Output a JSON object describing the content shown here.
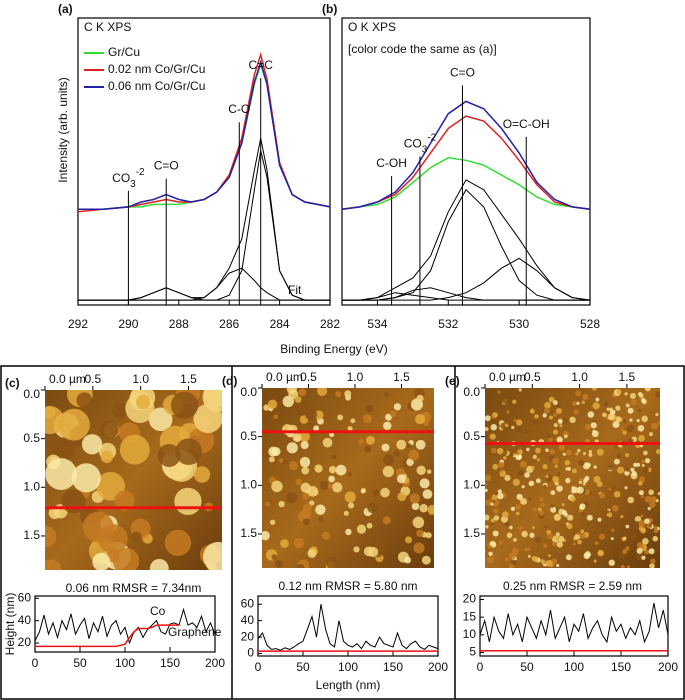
{
  "chart_data": [
    {
      "type": "line",
      "label": "(a)",
      "title": "C K XPS",
      "x_label": "Binding Energy (eV)",
      "y_label": "Intensity (arb. units)",
      "x": [
        292,
        291,
        290,
        289.5,
        289,
        288.5,
        288,
        287.5,
        287,
        286.5,
        286,
        285.5,
        285,
        284.75,
        284.5,
        284,
        283.5,
        283,
        282.5,
        282
      ],
      "xlim": [
        292,
        282
      ],
      "xticks": [
        292,
        290,
        288,
        286,
        284,
        282
      ],
      "ylim": [
        -2,
        115
      ],
      "legend": "upper left",
      "series": [
        {
          "name": "Gr/Cu",
          "color": "#33dd33",
          "values": [
            37,
            37,
            38,
            38,
            39,
            39,
            39,
            40,
            41,
            44,
            50,
            64,
            88,
            96,
            88,
            55,
            43,
            40,
            39,
            38
          ]
        },
        {
          "name": "0.02 nm Co/Gr/Cu",
          "color": "#dd2222",
          "values": [
            36,
            37,
            38,
            39,
            40,
            41,
            40,
            40,
            41,
            44,
            51,
            66,
            92,
            100,
            90,
            56,
            43,
            40,
            39,
            38
          ]
        },
        {
          "name": "0.06 nm Co/Gr/Cu",
          "color": "#2222aa",
          "values": [
            37,
            37,
            38,
            40,
            41,
            43,
            41,
            40,
            41,
            44,
            50,
            64,
            89,
            97,
            88,
            55,
            43,
            40,
            39,
            38
          ]
        },
        {
          "color": "#000000",
          "values": [
            0,
            0,
            0,
            1,
            3,
            5,
            3,
            1,
            0,
            0,
            0,
            0,
            0,
            0,
            0,
            0,
            0,
            0,
            0,
            0
          ]
        },
        {
          "color": "#000000",
          "values": [
            0,
            0,
            0,
            0,
            0,
            0,
            0,
            0,
            1,
            5,
            11,
            13,
            8,
            5,
            3,
            0,
            0,
            0,
            0,
            0
          ]
        },
        {
          "color": "#000000",
          "values": [
            0,
            0,
            0,
            0,
            0,
            0,
            0,
            0,
            0,
            0,
            2,
            12,
            45,
            61,
            50,
            12,
            2,
            0,
            0,
            0
          ]
        },
        {
          "color": "#000000",
          "values": [
            0,
            0,
            0,
            1,
            3,
            5,
            3,
            1,
            1,
            5,
            13,
            25,
            53,
            66,
            53,
            12,
            2,
            0,
            0,
            0
          ]
        }
      ],
      "annotations": [
        {
          "text": "CO",
          "sub": "3",
          "sup": "-2",
          "x": 290
        },
        {
          "text": "C=O",
          "x": 288.5
        },
        {
          "text": "C-O",
          "x": 285.6
        },
        {
          "text": "C=C",
          "x": 284.75
        }
      ],
      "fit_label": "Fit"
    },
    {
      "type": "line",
      "label": "(b)",
      "title": "O K XPS",
      "subtitle": "[color code the same as (a)]",
      "x": [
        535,
        534.5,
        534,
        533.5,
        533,
        532.5,
        532,
        531.5,
        531,
        530.5,
        530,
        529.5,
        529,
        528.5,
        528
      ],
      "xlim": [
        535,
        528
      ],
      "xticks": [
        534,
        532,
        530,
        528
      ],
      "ylim": [
        -2,
        115
      ],
      "series": [
        {
          "color": "#33dd33",
          "values": [
            37,
            38,
            39,
            42,
            48,
            54,
            58,
            57,
            55,
            51,
            47,
            42,
            39,
            38,
            37
          ]
        },
        {
          "color": "#dd2222",
          "values": [
            37,
            38,
            40,
            43,
            50,
            60,
            70,
            75,
            73,
            66,
            57,
            47,
            40,
            38,
            37
          ]
        },
        {
          "color": "#2222aa",
          "values": [
            37,
            38,
            40,
            44,
            52,
            64,
            76,
            81,
            78,
            70,
            60,
            48,
            41,
            38,
            37
          ]
        },
        {
          "color": "#000000",
          "values": [
            0,
            0,
            0,
            1,
            3,
            12,
            32,
            45,
            38,
            22,
            8,
            2,
            0,
            0,
            0
          ]
        },
        {
          "color": "#000000",
          "values": [
            0,
            0,
            0,
            0,
            0,
            0,
            1,
            3,
            7,
            13,
            17,
            12,
            5,
            1,
            0
          ]
        },
        {
          "color": "#000000",
          "values": [
            0,
            0,
            1,
            3,
            2,
            1,
            0,
            0,
            0,
            0,
            0,
            0,
            0,
            0,
            0
          ]
        },
        {
          "color": "#000000",
          "values": [
            0,
            0,
            0,
            1,
            4,
            5,
            3,
            1,
            0,
            0,
            0,
            0,
            0,
            0,
            0
          ]
        },
        {
          "color": "#000000",
          "values": [
            0,
            0,
            1,
            5,
            9,
            18,
            36,
            49,
            45,
            35,
            25,
            14,
            5,
            1,
            0
          ]
        }
      ],
      "annotations": [
        {
          "text": "C-OH",
          "x": 533.6
        },
        {
          "text": "CO",
          "sub": "3",
          "sup": "-2",
          "x": 532.8
        },
        {
          "text": "C=O",
          "x": 531.6
        },
        {
          "text": "O=C-OH",
          "x": 529.8
        }
      ]
    },
    {
      "type": "image",
      "label": "(c)",
      "caption": "0.06 nm RMSR = 7.34nm",
      "xlim": [
        0,
        1.85
      ],
      "ylim": [
        0,
        1.85
      ],
      "xticks": [
        {
          "value": 0,
          "label": "0.0 µm"
        },
        {
          "value": 0.5,
          "label": "0.5"
        },
        {
          "value": 1,
          "label": "1.0"
        },
        {
          "value": 1.5,
          "label": "1.5"
        }
      ],
      "yticks": [
        {
          "value": 0,
          "label": "0.0"
        },
        {
          "value": 0.5,
          "label": "0.5"
        },
        {
          "value": 1,
          "label": "1.0"
        },
        {
          "value": 1.5,
          "label": "1.5"
        }
      ],
      "line_y": 1.21,
      "line_color": "#ee1111"
    },
    {
      "type": "line",
      "y_label": "Height (nm)",
      "x": [
        0,
        5,
        10,
        15,
        20,
        25,
        30,
        35,
        40,
        45,
        50,
        55,
        60,
        65,
        70,
        75,
        80,
        85,
        90,
        95,
        100,
        105,
        110,
        115,
        120,
        125,
        130,
        135,
        140,
        145,
        150,
        155,
        160,
        165,
        170,
        175,
        180,
        185,
        190,
        195,
        200
      ],
      "xlim": [
        0,
        200
      ],
      "xticks": [
        0,
        50,
        100,
        150,
        200
      ],
      "ylim": [
        12,
        62
      ],
      "yticks": [
        20,
        40,
        60
      ],
      "series": [
        {
          "color": "#000000",
          "values": [
            22,
            30,
            45,
            28,
            38,
            25,
            40,
            32,
            46,
            28,
            36,
            42,
            24,
            38,
            30,
            44,
            26,
            36,
            40,
            28,
            34,
            20,
            30,
            34,
            25,
            32,
            36,
            40,
            30,
            28,
            37,
            38,
            36,
            50,
            36,
            38,
            34,
            44,
            30,
            38,
            28
          ]
        },
        {
          "color": "#ee1111",
          "values": [
            17,
            17,
            17,
            17,
            17,
            17,
            17,
            17,
            17,
            17,
            17,
            17,
            17,
            17,
            17,
            17,
            17,
            17,
            17,
            18,
            19,
            25,
            30,
            33,
            33,
            33,
            34,
            36,
            36,
            36,
            36,
            36,
            36,
            null,
            null,
            null,
            null,
            null,
            null,
            null,
            null
          ]
        }
      ],
      "annotations": [
        "Co",
        "Graphene"
      ]
    },
    {
      "type": "image",
      "label": "(d)",
      "caption": "0.12 nm RMSR = 5.80 nm",
      "xlim": [
        0,
        1.85
      ],
      "ylim": [
        0,
        1.85
      ],
      "xticks": [
        {
          "value": 0,
          "label": "0.0 µm"
        },
        {
          "value": 0.5,
          "label": "0.5"
        },
        {
          "value": 1,
          "label": "1.0"
        },
        {
          "value": 1.5,
          "label": "1.5"
        }
      ],
      "yticks": [
        {
          "value": 0,
          "label": "0.0"
        },
        {
          "value": 0.5,
          "label": "0.5"
        },
        {
          "value": 1,
          "label": "1.0"
        },
        {
          "value": 1.5,
          "label": "1.5"
        }
      ],
      "line_y": 0.45,
      "line_color": "#ee1111"
    },
    {
      "type": "line",
      "x_label": "Length (nm)",
      "x": [
        0,
        5,
        10,
        15,
        20,
        25,
        30,
        35,
        40,
        45,
        50,
        55,
        60,
        65,
        70,
        75,
        80,
        85,
        90,
        95,
        100,
        105,
        110,
        115,
        120,
        125,
        130,
        135,
        140,
        145,
        150,
        155,
        160,
        165,
        170,
        175,
        180,
        185,
        190,
        195,
        200
      ],
      "xlim": [
        0,
        200
      ],
      "xticks": [
        0,
        50,
        100,
        150,
        200
      ],
      "ylim": [
        -3,
        70
      ],
      "yticks": [
        0,
        20,
        40,
        60
      ],
      "series": [
        {
          "color": "#000000",
          "values": [
            18,
            25,
            10,
            5,
            6,
            4,
            7,
            5,
            8,
            12,
            15,
            30,
            45,
            20,
            60,
            30,
            12,
            8,
            40,
            15,
            10,
            8,
            12,
            6,
            15,
            10,
            8,
            20,
            12,
            10,
            8,
            25,
            10,
            6,
            12,
            15,
            8,
            5,
            10,
            8,
            6
          ]
        },
        {
          "color": "#ee1111",
          "values": [
            3,
            3,
            3,
            3,
            3,
            3,
            3,
            3,
            3,
            3,
            3,
            3,
            3,
            3,
            3,
            3,
            3,
            3,
            3,
            3,
            3,
            3,
            3,
            3,
            3,
            3,
            3,
            3,
            3,
            3,
            3,
            3,
            3,
            3,
            3,
            3,
            3,
            3,
            3,
            3,
            3
          ]
        }
      ]
    },
    {
      "type": "image",
      "label": "(e)",
      "caption": "0.25 nm RMSR = 2.59 nm",
      "xlim": [
        0,
        1.85
      ],
      "ylim": [
        0,
        1.85
      ],
      "xticks": [
        {
          "value": 0,
          "label": "0.0 µm"
        },
        {
          "value": 0.5,
          "label": "0.5"
        },
        {
          "value": 1,
          "label": "1.0"
        },
        {
          "value": 1.5,
          "label": "1.5"
        }
      ],
      "yticks": [
        {
          "value": 0,
          "label": "0.0"
        },
        {
          "value": 0.5,
          "label": "0.5"
        },
        {
          "value": 1,
          "label": "1.0"
        },
        {
          "value": 1.5,
          "label": "1.5"
        }
      ],
      "line_y": 0.57,
      "line_color": "#ee1111"
    },
    {
      "type": "line",
      "x": [
        0,
        5,
        10,
        15,
        20,
        25,
        30,
        35,
        40,
        45,
        50,
        55,
        60,
        65,
        70,
        75,
        80,
        85,
        90,
        95,
        100,
        105,
        110,
        115,
        120,
        125,
        130,
        135,
        140,
        145,
        150,
        155,
        160,
        165,
        170,
        175,
        180,
        185,
        190,
        195,
        200
      ],
      "xlim": [
        0,
        200
      ],
      "xticks": [
        0,
        50,
        100,
        150,
        200
      ],
      "ylim": [
        4,
        21
      ],
      "yticks": [
        5,
        10,
        15,
        20
      ],
      "series": [
        {
          "color": "#000000",
          "values": [
            10,
            14,
            8,
            15,
            11,
            9,
            16,
            10,
            13,
            8,
            15,
            12,
            9,
            14,
            10,
            17,
            9,
            12,
            15,
            8,
            13,
            11,
            16,
            9,
            12,
            14,
            10,
            8,
            15,
            11,
            13,
            9,
            12,
            10,
            14,
            8,
            11,
            19,
            12,
            17,
            10
          ]
        },
        {
          "color": "#ee1111",
          "values": [
            5.5,
            5.5,
            5.5,
            5.5,
            5.5,
            5.5,
            5.5,
            5.5,
            5.5,
            5.5,
            5.5,
            5.5,
            5.5,
            5.5,
            5.5,
            5.5,
            5.5,
            5.5,
            5.5,
            5.5,
            5.5,
            5.5,
            5.5,
            5.5,
            5.5,
            5.5,
            5.5,
            5.5,
            5.5,
            5.5,
            5.5,
            5.5,
            5.5,
            5.5,
            5.5,
            5.5,
            5.5,
            5.5,
            5.5,
            5.5,
            5.5
          ]
        }
      ]
    }
  ]
}
